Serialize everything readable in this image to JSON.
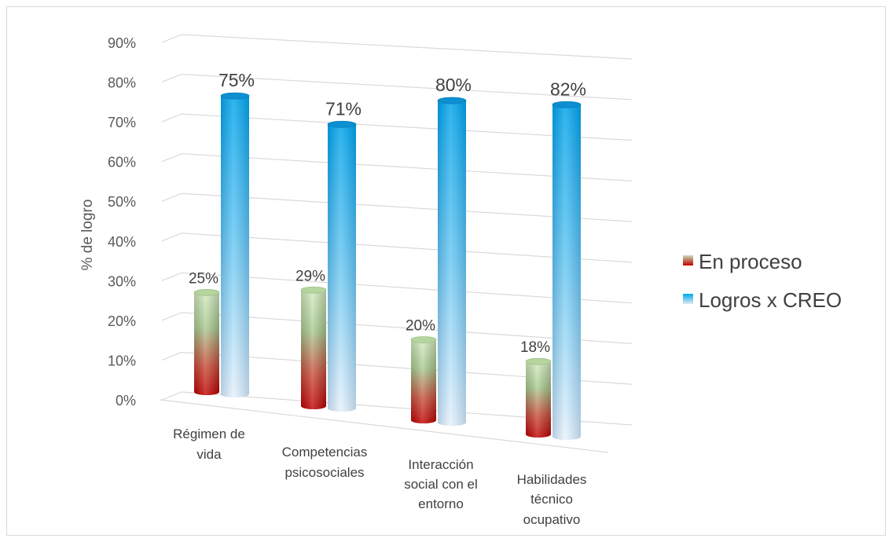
{
  "chart_data": {
    "type": "bar",
    "style": "3d-cylinder",
    "ylabel": "% de logro",
    "ylim": [
      0,
      90
    ],
    "yticks": [
      "0%",
      "10%",
      "20%",
      "30%",
      "40%",
      "50%",
      "60%",
      "70%",
      "80%",
      "90%"
    ],
    "categories": [
      [
        "Régimen de",
        "vida"
      ],
      [
        "Competencias",
        "psicosociales"
      ],
      [
        "Interacción",
        "social con el",
        "entorno"
      ],
      [
        "Habilidades",
        "técnico",
        "ocupativo"
      ]
    ],
    "series": [
      {
        "name": "En proceso",
        "values": [
          25,
          29,
          20,
          18
        ],
        "labels": [
          "25%",
          "29%",
          "20%",
          "18%"
        ],
        "color_top": "#c6e0b4",
        "color_bottom": "#c00000"
      },
      {
        "name": "Logros x CREO",
        "values": [
          75,
          71,
          80,
          82
        ],
        "labels": [
          "75%",
          "71%",
          "80%",
          "82%"
        ],
        "color_top": "#00a6e8",
        "color_bottom": "#ddebf7"
      }
    ],
    "grid": true,
    "legend_position": "right"
  }
}
